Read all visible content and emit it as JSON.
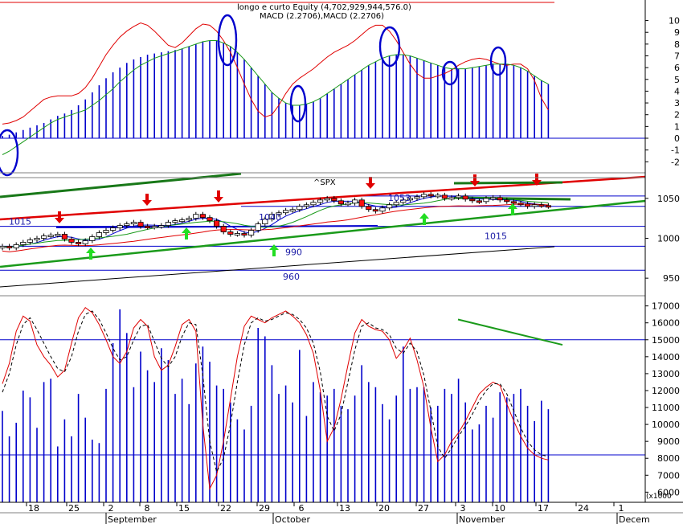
{
  "header": {
    "line1": "longo e curto Equity (4,702,929,944,576.0)",
    "line2": "MACD (2.2706),MACD (2.2706)",
    "price_symbol": "^SPX",
    "volume_unit": "(x1000"
  },
  "colors": {
    "blue": "#0000cc",
    "red": "#e00000",
    "green": "#1a9a1a",
    "darkgreen": "#187818",
    "candle_red": "#ff1010",
    "arrow_green": "#22dd22",
    "annotation": "#1a1aa6"
  },
  "chart_data": [
    {
      "type": "bar",
      "title": "MACD",
      "ylim": [
        -2.8,
        11.2
      ],
      "y_ticks": [
        "10",
        "9",
        "8",
        "7",
        "6",
        "5",
        "4",
        "3",
        "2",
        "1",
        "0",
        "-1",
        "-2"
      ],
      "histogram": [
        0.2,
        0.3,
        0.5,
        0.7,
        0.9,
        1.1,
        1.3,
        1.6,
        1.9,
        2.1,
        2.4,
        2.8,
        3.3,
        3.9,
        4.5,
        5.1,
        5.6,
        6.0,
        6.4,
        6.7,
        6.9,
        7.1,
        7.2,
        7.3,
        7.4,
        7.5,
        7.6,
        7.8,
        8.0,
        8.2,
        8.3,
        8.3,
        8.1,
        7.8,
        7.3,
        6.7,
        6.0,
        5.3,
        4.6,
        3.9,
        3.4,
        3.0,
        2.8,
        2.8,
        2.9,
        3.1,
        3.4,
        3.8,
        4.2,
        4.6,
        5.0,
        5.4,
        5.8,
        6.2,
        6.5,
        6.8,
        7.0,
        7.1,
        7.1,
        7.0,
        6.8,
        6.6,
        6.4,
        6.2,
        6.0,
        5.9,
        5.9,
        5.9,
        6.0,
        6.1,
        6.2,
        6.3,
        6.3,
        6.3,
        6.2,
        6.0,
        5.7,
        5.3,
        4.9,
        4.6
      ],
      "series": [
        {
          "name": "MACD",
          "color": "red",
          "values": [
            1.2,
            1.3,
            1.5,
            1.8,
            2.3,
            2.8,
            3.3,
            3.5,
            3.6,
            3.6,
            3.6,
            3.8,
            4.3,
            5.1,
            6.1,
            7.1,
            7.9,
            8.6,
            9.1,
            9.5,
            9.8,
            9.6,
            9.1,
            8.5,
            7.9,
            7.7,
            8.1,
            8.7,
            9.3,
            9.7,
            9.6,
            9.1,
            8.3,
            7.3,
            6.0,
            4.6,
            3.3,
            2.3,
            1.8,
            2.0,
            2.8,
            3.8,
            4.6,
            5.1,
            5.5,
            5.9,
            6.4,
            6.9,
            7.3,
            7.6,
            7.9,
            8.3,
            8.8,
            9.3,
            9.6,
            9.6,
            9.1,
            8.3,
            7.3,
            6.3,
            5.5,
            5.1,
            5.1,
            5.3,
            5.5,
            5.8,
            6.2,
            6.5,
            6.7,
            6.8,
            6.7,
            6.5,
            6.3,
            6.2,
            6.3,
            6.3,
            5.9,
            4.9,
            3.4,
            2.4
          ]
        },
        {
          "name": "MACD",
          "color": "green",
          "values": [
            -1.4,
            -1.1,
            -0.7,
            -0.3,
            0.1,
            0.5,
            0.9,
            1.3,
            1.6,
            1.8,
            2.0,
            2.2,
            2.4,
            2.8,
            3.2,
            3.7,
            4.2,
            4.8,
            5.3,
            5.8,
            6.2,
            6.5,
            6.8,
            7.0,
            7.2,
            7.4,
            7.6,
            7.8,
            8.0,
            8.2,
            8.3,
            8.3,
            8.1,
            7.8,
            7.3,
            6.7,
            6.0,
            5.3,
            4.6,
            3.9,
            3.4,
            3.0,
            2.8,
            2.8,
            2.9,
            3.1,
            3.4,
            3.8,
            4.2,
            4.6,
            5.0,
            5.4,
            5.8,
            6.2,
            6.5,
            6.8,
            7.0,
            7.1,
            7.1,
            7.0,
            6.8,
            6.6,
            6.4,
            6.2,
            6.0,
            5.9,
            5.9,
            5.9,
            6.0,
            6.1,
            6.2,
            6.3,
            6.3,
            6.3,
            6.2,
            6.0,
            5.7,
            5.3,
            4.9,
            4.6
          ]
        }
      ]
    },
    {
      "type": "candlestick",
      "title": "^SPX",
      "ylim": [
        930,
        1075
      ],
      "y_ticks": [
        "1050",
        "1000",
        "950"
      ],
      "horizontal_levels": [
        {
          "value": 1053,
          "label": "1053"
        },
        {
          "value": 1040,
          "label": "1040"
        },
        {
          "value": 1015,
          "label": "1015"
        },
        {
          "value": 990,
          "label": "990"
        },
        {
          "value": 960,
          "label": "960"
        }
      ],
      "close": [
        990,
        988,
        992,
        995,
        998,
        1000,
        1003,
        1004,
        1005,
        999,
        995,
        993,
        997,
        1002,
        1007,
        1010,
        1013,
        1016,
        1018,
        1020,
        1015,
        1014,
        1015,
        1016,
        1020,
        1022,
        1023,
        1025,
        1030,
        1026,
        1022,
        1015,
        1008,
        1005,
        1006,
        1004,
        1010,
        1018,
        1024,
        1030,
        1032,
        1035,
        1036,
        1040,
        1042,
        1045,
        1048,
        1050,
        1047,
        1043,
        1044,
        1048,
        1040,
        1036,
        1034,
        1038,
        1042,
        1045,
        1048,
        1050,
        1052,
        1055,
        1053,
        1054,
        1050,
        1051,
        1053,
        1049,
        1047,
        1046,
        1050,
        1051,
        1048,
        1046,
        1044,
        1043,
        1040,
        1042,
        1041,
        1040
      ]
    },
    {
      "type": "bar",
      "title": "Volume + Stochastic",
      "ylim": [
        5400,
        17600
      ],
      "y_ticks": [
        "17000",
        "16000",
        "15000",
        "14000",
        "13000",
        "12000",
        "11000",
        "10000",
        "9000",
        "8000",
        "7000",
        "6000"
      ],
      "horizontal_levels": [
        15000,
        8200
      ],
      "volume": [
        10800,
        9300,
        10100,
        12000,
        11600,
        9800,
        12500,
        12700,
        8700,
        10300,
        9300,
        11800,
        10400,
        9100,
        8900,
        12100,
        14800,
        16800,
        15400,
        12200,
        14300,
        13200,
        12500,
        14500,
        13800,
        11800,
        12700,
        11200,
        13600,
        14600,
        13700,
        12300,
        12100,
        11300,
        10300,
        9700,
        11100,
        15700,
        15200,
        13500,
        11800,
        12300,
        11300,
        14400,
        10500,
        12500,
        11900,
        11700,
        12100,
        11100,
        10900,
        11700,
        13500,
        12500,
        12200,
        11200,
        10300,
        11700,
        14600,
        12100,
        12200,
        12200,
        11000,
        11100,
        12100,
        11800,
        12700,
        11300,
        9700,
        10000,
        11100,
        10400,
        11900,
        11600,
        11800,
        12100,
        11100,
        10200,
        11400,
        10900
      ],
      "series": [
        {
          "name": "Stochastic %K",
          "color": "red",
          "values": [
            12400,
            13600,
            15500,
            16400,
            16100,
            14700,
            14000,
            13500,
            12800,
            13200,
            14800,
            16300,
            16900,
            16600,
            15900,
            15000,
            14000,
            13600,
            14300,
            15700,
            16200,
            15800,
            14000,
            13200,
            13500,
            14600,
            15900,
            16200,
            15500,
            10000,
            6200,
            7000,
            9000,
            11500,
            14000,
            15800,
            16400,
            16200,
            16000,
            16300,
            16500,
            16700,
            16400,
            16000,
            15300,
            14200,
            12000,
            9000,
            9800,
            11500,
            13500,
            15400,
            16200,
            15800,
            15600,
            15500,
            15000,
            13900,
            14400,
            15100,
            13800,
            12200,
            9800,
            7800,
            8200,
            9000,
            9500,
            10200,
            11000,
            11800,
            12200,
            12500,
            12300,
            11200,
            10200,
            9300,
            8600,
            8200,
            8000,
            7900
          ]
        },
        {
          "name": "Stochastic %D",
          "color": "black",
          "values": [
            11900,
            13000,
            14700,
            15900,
            16300,
            15600,
            14800,
            14000,
            13300,
            13100,
            14000,
            15500,
            16500,
            16700,
            16200,
            15400,
            14500,
            13800,
            14000,
            15000,
            15800,
            15900,
            14900,
            13900,
            13400,
            14000,
            15200,
            16000,
            15900,
            12900,
            9000,
            7200,
            8000,
            10000,
            12500,
            14700,
            16000,
            16300,
            16100,
            16200,
            16400,
            16600,
            16500,
            16200,
            15700,
            14800,
            13100,
            10500,
            9600,
            10600,
            12500,
            14400,
            15800,
            16000,
            15700,
            15600,
            15300,
            14500,
            14200,
            14800,
            14300,
            12900,
            10800,
            8700,
            8000,
            8600,
            9300,
            9900,
            10600,
            11400,
            12000,
            12400,
            12400,
            11800,
            10800,
            9800,
            9000,
            8500,
            8200,
            8100
          ]
        },
        {
          "name": "Trendline",
          "color": "green",
          "values": [
            16200,
            14700
          ]
        }
      ]
    }
  ],
  "xaxis": {
    "day_ticks": [
      "18",
      "25",
      "2",
      "8",
      "15",
      "22",
      "29",
      "6",
      "13",
      "20",
      "27",
      "3",
      "10",
      "17",
      "24",
      "1"
    ],
    "months": [
      "September",
      "October",
      "November",
      "Decem"
    ]
  }
}
